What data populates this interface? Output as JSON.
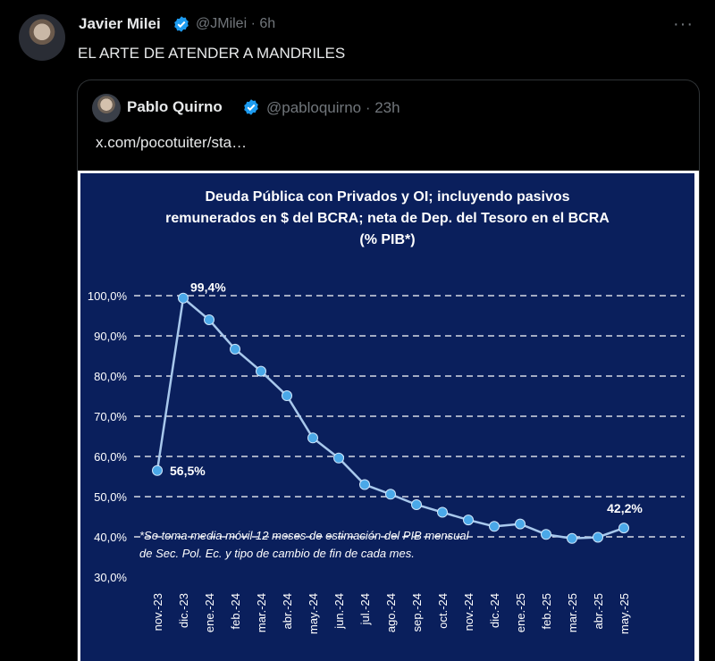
{
  "tweet": {
    "author_name": "Javier Milei",
    "handle": "@JMilei",
    "time": "6h",
    "more_icon": "more-icon",
    "text": "EL ARTE DE ATENDER A MANDRILES"
  },
  "quote": {
    "author_name": "Pablo Quirno",
    "handle": "@pabloquirno",
    "time": "23h",
    "link": "x.com/pocotuiter/sta…"
  },
  "colors": {
    "background": "#000000",
    "chart_bg": "#0a1f5c",
    "line": "#a8c8ec",
    "point": "#4aa8e8",
    "verified": "#1d9bf0"
  },
  "chart_data": {
    "type": "line",
    "title_lines": [
      "Deuda Pública con Privados y OI; incluyendo pasivos",
      "remunerados en $ del BCRA; neta de Dep. del Tesoro en el BCRA",
      "(% PIB*)"
    ],
    "categories": [
      "nov.-23",
      "dic.-23",
      "ene.-24",
      "feb.-24",
      "mar.-24",
      "abr.-24",
      "may.-24",
      "jun.-24",
      "jul.-24",
      "ago.-24",
      "sep.-24",
      "oct.-24",
      "nov.-24",
      "dic.-24",
      "ene.-25",
      "feb.-25",
      "mar.-25",
      "abr.-25",
      "may.-25"
    ],
    "values": [
      56.5,
      99.4,
      94.0,
      86.7,
      81.2,
      75.1,
      64.6,
      59.6,
      53.0,
      50.6,
      48.0,
      46.1,
      44.2,
      42.6,
      43.2,
      40.6,
      39.6,
      39.9,
      42.2
    ],
    "ylim": [
      30,
      100
    ],
    "yticks": [
      "30,0%",
      "40,0%",
      "50,0%",
      "60,0%",
      "70,0%",
      "80,0%",
      "90,0%",
      "100,0%"
    ],
    "data_labels": {
      "first": "56,5%",
      "max": "99,4%",
      "last": "42,2%"
    },
    "grid": "dashed horizontal",
    "footnote_lines": [
      "*Se toma media móvil 12 meses de estimación del PIB mensual",
      "de Sec. Pol. Ec. y tipo de cambio de fin de cada mes."
    ]
  }
}
